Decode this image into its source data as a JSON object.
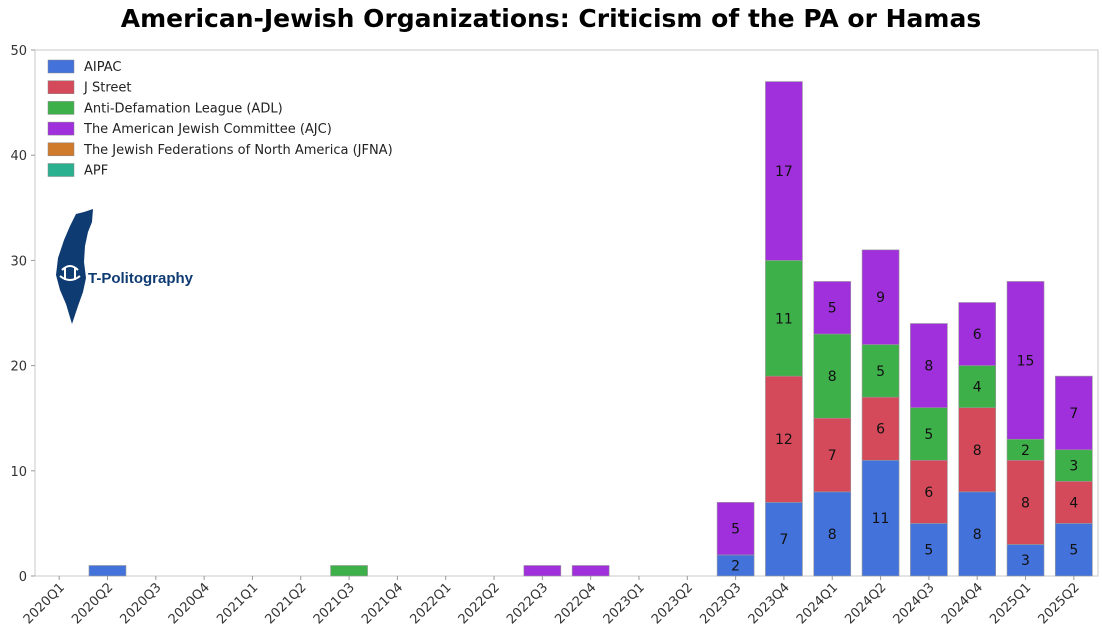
{
  "title": "American-Jewish Organizations: Criticism of the PA or Hamas",
  "logo_text": "T-Politography",
  "chart_data": {
    "type": "bar",
    "stacked": true,
    "title": "American-Jewish Organizations: Criticism of the PA or Hamas",
    "xlabel": "",
    "ylabel": "",
    "ylim": [
      0,
      50
    ],
    "yticks": [
      0,
      10,
      20,
      30,
      40,
      50
    ],
    "legend_position": "top-left",
    "categories": [
      "2020Q1",
      "2020Q2",
      "2020Q3",
      "2020Q4",
      "2021Q1",
      "2021Q2",
      "2021Q3",
      "2021Q4",
      "2022Q1",
      "2022Q2",
      "2022Q3",
      "2022Q4",
      "2023Q1",
      "2023Q2",
      "2023Q3",
      "2023Q4",
      "2024Q1",
      "2024Q2",
      "2024Q3",
      "2024Q4",
      "2025Q1",
      "2025Q2"
    ],
    "series": [
      {
        "name": "AIPAC",
        "color": "#4472db",
        "values": [
          0,
          1,
          0,
          0,
          0,
          0,
          0,
          0,
          0,
          0,
          0,
          0,
          0,
          0,
          2,
          7,
          8,
          11,
          5,
          8,
          3,
          5
        ]
      },
      {
        "name": "J Street",
        "color": "#d54a5b",
        "values": [
          0,
          0,
          0,
          0,
          0,
          0,
          0,
          0,
          0,
          0,
          0,
          0,
          0,
          0,
          0,
          12,
          7,
          6,
          6,
          8,
          8,
          4
        ]
      },
      {
        "name": "Anti-Defamation League (ADL)",
        "color": "#3eb04a",
        "values": [
          0,
          0,
          0,
          0,
          0,
          0,
          1,
          0,
          0,
          0,
          0,
          0,
          0,
          0,
          0,
          11,
          8,
          5,
          5,
          4,
          2,
          3
        ]
      },
      {
        "name": "The American Jewish Committee (AJC)",
        "color": "#a02fdc",
        "values": [
          0,
          0,
          0,
          0,
          0,
          0,
          0,
          0,
          0,
          0,
          1,
          1,
          0,
          0,
          5,
          17,
          5,
          9,
          8,
          6,
          15,
          7
        ]
      },
      {
        "name": "The Jewish Federations of North America (JFNA)",
        "color": "#d07a2c",
        "values": [
          0,
          0,
          0,
          0,
          0,
          0,
          0,
          0,
          0,
          0,
          0,
          0,
          0,
          0,
          0,
          0,
          0,
          0,
          0,
          0,
          0,
          0
        ]
      },
      {
        "name": "APF",
        "color": "#2bb08f",
        "values": [
          0,
          0,
          0,
          0,
          0,
          0,
          0,
          0,
          0,
          0,
          0,
          0,
          0,
          0,
          0,
          0,
          0,
          0,
          0,
          0,
          0,
          0
        ]
      }
    ],
    "segment_labels_min": 2
  }
}
